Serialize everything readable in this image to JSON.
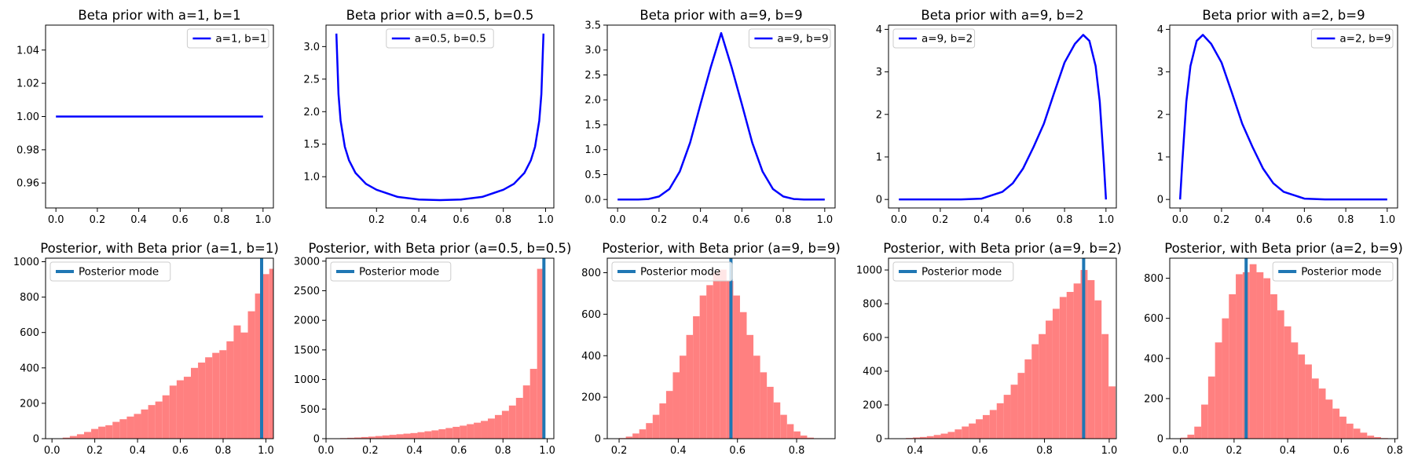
{
  "chart_data": [
    {
      "type": "line",
      "title": "Beta prior with a=1, b=1",
      "color": "#0000ff",
      "legend_position": "upper-right",
      "series": [
        {
          "name": "a=1, b=1",
          "x": [
            0.0,
            1.0
          ],
          "y": [
            1.0,
            1.0
          ]
        }
      ],
      "xlim": [
        -0.05,
        1.05
      ],
      "ylim": [
        0.945,
        1.055
      ],
      "xticks": [
        0.0,
        0.2,
        0.4,
        0.6,
        0.8,
        1.0
      ],
      "xtick_labels": [
        "0.0",
        "0.2",
        "0.4",
        "0.6",
        "0.8",
        "1.0"
      ],
      "yticks": [
        0.96,
        0.98,
        1.0,
        1.02,
        1.04
      ],
      "ytick_labels": [
        "0.96",
        "0.98",
        "1.00",
        "1.02",
        "1.04"
      ]
    },
    {
      "type": "line",
      "title": "Beta prior with a=0.5, b=0.5",
      "color": "#0000ff",
      "legend_position": "upper-center",
      "series": [
        {
          "name": "a=0.5, b=0.5",
          "x": [
            0.01,
            0.02,
            0.03,
            0.05,
            0.07,
            0.1,
            0.15,
            0.2,
            0.3,
            0.4,
            0.5,
            0.6,
            0.7,
            0.8,
            0.85,
            0.9,
            0.93,
            0.95,
            0.97,
            0.98,
            0.99
          ],
          "y": [
            3.2,
            2.27,
            1.86,
            1.46,
            1.25,
            1.06,
            0.89,
            0.8,
            0.69,
            0.65,
            0.64,
            0.65,
            0.69,
            0.8,
            0.89,
            1.06,
            1.25,
            1.46,
            1.86,
            2.27,
            3.2
          ]
        }
      ],
      "xlim": [
        -0.039,
        1.039
      ],
      "ylim": [
        0.52,
        3.33
      ],
      "xticks": [
        0.2,
        0.4,
        0.6,
        0.8,
        1.0
      ],
      "xtick_labels": [
        "0.2",
        "0.4",
        "0.6",
        "0.8",
        "1.0"
      ],
      "yticks": [
        1.0,
        1.5,
        2.0,
        2.5,
        3.0
      ],
      "ytick_labels": [
        "1.0",
        "1.5",
        "2.0",
        "2.5",
        "3.0"
      ]
    },
    {
      "type": "line",
      "title": "Beta prior with a=9, b=9",
      "color": "#0000ff",
      "legend_position": "upper-right",
      "series": [
        {
          "name": "a=9, b=9",
          "x": [
            0.0,
            0.1,
            0.15,
            0.2,
            0.25,
            0.3,
            0.35,
            0.4,
            0.45,
            0.5,
            0.55,
            0.6,
            0.65,
            0.7,
            0.75,
            0.8,
            0.85,
            0.9,
            1.0
          ],
          "y": [
            0.0,
            0.0,
            0.01,
            0.06,
            0.21,
            0.56,
            1.14,
            1.91,
            2.66,
            3.34,
            2.66,
            1.91,
            1.14,
            0.56,
            0.21,
            0.06,
            0.01,
            0.0,
            0.0
          ]
        }
      ],
      "xlim": [
        -0.05,
        1.05
      ],
      "ylim": [
        -0.17,
        3.5
      ],
      "xticks": [
        0.0,
        0.2,
        0.4,
        0.6,
        0.8,
        1.0
      ],
      "xtick_labels": [
        "0.0",
        "0.2",
        "0.4",
        "0.6",
        "0.8",
        "1.0"
      ],
      "yticks": [
        0.0,
        0.5,
        1.0,
        1.5,
        2.0,
        2.5,
        3.0,
        3.5
      ],
      "ytick_labels": [
        "0.0",
        "0.5",
        "1.0",
        "1.5",
        "2.0",
        "2.5",
        "3.0",
        "3.5"
      ]
    },
    {
      "type": "line",
      "title": "Beta prior with a=9, b=2",
      "color": "#0000ff",
      "legend_position": "upper-left",
      "series": [
        {
          "name": "a=9, b=2",
          "x": [
            0.0,
            0.3,
            0.4,
            0.5,
            0.55,
            0.6,
            0.65,
            0.7,
            0.75,
            0.8,
            0.85,
            0.89,
            0.92,
            0.95,
            0.97,
            0.99,
            1.0
          ],
          "y": [
            0.0,
            0.0,
            0.02,
            0.18,
            0.38,
            0.73,
            1.23,
            1.78,
            2.51,
            3.22,
            3.66,
            3.87,
            3.73,
            3.14,
            2.3,
            0.83,
            0.0
          ]
        }
      ],
      "xlim": [
        -0.05,
        1.05
      ],
      "ylim": [
        -0.2,
        4.1
      ],
      "xticks": [
        0.0,
        0.2,
        0.4,
        0.6,
        0.8,
        1.0
      ],
      "xtick_labels": [
        "0.0",
        "0.2",
        "0.4",
        "0.6",
        "0.8",
        "1.0"
      ],
      "yticks": [
        0,
        1,
        2,
        3,
        4
      ],
      "ytick_labels": [
        "0",
        "1",
        "2",
        "3",
        "4"
      ]
    },
    {
      "type": "line",
      "title": "Beta prior with a=2, b=9",
      "color": "#0000ff",
      "legend_position": "upper-right",
      "series": [
        {
          "name": "a=2, b=9",
          "x": [
            0.0,
            0.01,
            0.03,
            0.05,
            0.08,
            0.11,
            0.15,
            0.2,
            0.25,
            0.3,
            0.35,
            0.4,
            0.45,
            0.5,
            0.6,
            0.7,
            1.0
          ],
          "y": [
            0.0,
            0.83,
            2.3,
            3.14,
            3.73,
            3.87,
            3.66,
            3.22,
            2.51,
            1.78,
            1.23,
            0.73,
            0.38,
            0.18,
            0.02,
            0.0,
            0.0
          ]
        }
      ],
      "xlim": [
        -0.05,
        1.05
      ],
      "ylim": [
        -0.2,
        4.1
      ],
      "xticks": [
        0.0,
        0.2,
        0.4,
        0.6,
        0.8,
        1.0
      ],
      "xtick_labels": [
        "0.0",
        "0.2",
        "0.4",
        "0.6",
        "0.8",
        "1.0"
      ],
      "yticks": [
        0,
        1,
        2,
        3,
        4
      ],
      "ytick_labels": [
        "0",
        "1",
        "2",
        "3",
        "4"
      ]
    },
    {
      "type": "bar",
      "title": "Posterior, with Beta prior (a=1, b=1)",
      "color": "#ff8080",
      "mode_color": "#1f77b4",
      "legend_position": "upper-left",
      "mode_label": "Posterior mode",
      "mode": 0.98,
      "bin_start": 0.0167,
      "bin_width": 0.0333,
      "values": [
        2,
        6,
        15,
        25,
        38,
        55,
        68,
        76,
        95,
        110,
        125,
        140,
        165,
        190,
        210,
        245,
        300,
        330,
        350,
        400,
        430,
        460,
        485,
        500,
        550,
        640,
        600,
        720,
        820,
        930,
        960
      ],
      "xlim": [
        -0.03,
        1.035
      ],
      "ylim": [
        0,
        1020
      ],
      "xticks": [
        0.0,
        0.2,
        0.4,
        0.6,
        0.8,
        1.0
      ],
      "xtick_labels": [
        "0.0",
        "0.2",
        "0.4",
        "0.6",
        "0.8",
        "1.0"
      ],
      "yticks": [
        0,
        200,
        400,
        600,
        800,
        1000
      ],
      "ytick_labels": [
        "0",
        "200",
        "400",
        "600",
        "800",
        "1000"
      ]
    },
    {
      "type": "bar",
      "title": "Posterior, with Beta prior (a=0.5, b=0.5)",
      "color": "#ff8080",
      "mode_color": "#1f77b4",
      "legend_position": "upper-left",
      "mode_label": "Posterior mode",
      "mode": 0.985,
      "bin_start": 0.032,
      "bin_width": 0.0318,
      "values": [
        5,
        10,
        15,
        20,
        28,
        35,
        45,
        55,
        65,
        75,
        85,
        95,
        110,
        125,
        140,
        160,
        180,
        200,
        220,
        245,
        270,
        300,
        340,
        400,
        470,
        560,
        690,
        900,
        1180,
        2870
      ],
      "xlim": [
        0.0,
        1.03
      ],
      "ylim": [
        0,
        3050
      ],
      "xticks": [
        0.0,
        0.2,
        0.4,
        0.6,
        0.8,
        1.0
      ],
      "xtick_labels": [
        "0.0",
        "0.2",
        "0.4",
        "0.6",
        "0.8",
        "1.0"
      ],
      "yticks": [
        0,
        500,
        1000,
        1500,
        2000,
        2500,
        3000
      ],
      "ytick_labels": [
        "0",
        "500",
        "1000",
        "1500",
        "2000",
        "2500",
        "3000"
      ]
    },
    {
      "type": "bar",
      "title": "Posterior, with Beta prior (a=9, b=9)",
      "color": "#ff8080",
      "mode_color": "#1f77b4",
      "legend_position": "upper-left",
      "mode_label": "Posterior mode",
      "mode": 0.578,
      "bin_start": 0.2,
      "bin_width": 0.0227,
      "values": [
        3,
        10,
        25,
        45,
        75,
        115,
        170,
        230,
        320,
        400,
        500,
        590,
        690,
        740,
        800,
        815,
        760,
        690,
        610,
        500,
        400,
        320,
        250,
        175,
        115,
        70,
        35,
        15,
        5,
        2
      ],
      "xlim": [
        0.16,
        0.93
      ],
      "ylim": [
        0,
        870
      ],
      "xticks": [
        0.2,
        0.4,
        0.6,
        0.8
      ],
      "xtick_labels": [
        "0.2",
        "0.4",
        "0.6",
        "0.8"
      ],
      "yticks": [
        0,
        200,
        400,
        600,
        800
      ],
      "ytick_labels": [
        "0",
        "200",
        "400",
        "600",
        "800"
      ]
    },
    {
      "type": "bar",
      "title": "Posterior, with Beta prior (a=9, b=2)",
      "color": "#ff8080",
      "mode_color": "#1f77b4",
      "legend_position": "upper-left",
      "mode_label": "Posterior mode",
      "mode": 0.921,
      "bin_start": 0.35,
      "bin_width": 0.0216,
      "values": [
        2,
        4,
        7,
        10,
        15,
        22,
        30,
        40,
        55,
        72,
        90,
        115,
        140,
        170,
        210,
        260,
        320,
        390,
        470,
        560,
        620,
        700,
        770,
        840,
        870,
        920,
        1000,
        940,
        820,
        620,
        310
      ],
      "xlim": [
        0.318,
        1.022
      ],
      "ylim": [
        0,
        1070
      ],
      "xticks": [
        0.4,
        0.6,
        0.8,
        1.0
      ],
      "xtick_labels": [
        "0.4",
        "0.6",
        "0.8",
        "1.0"
      ],
      "yticks": [
        0,
        200,
        400,
        600,
        800,
        1000
      ],
      "ytick_labels": [
        "0",
        "200",
        "400",
        "600",
        "800",
        "1000"
      ]
    },
    {
      "type": "bar",
      "title": "Posterior, with Beta prior (a=2, b=9)",
      "color": "#ff8080",
      "mode_color": "#1f77b4",
      "legend_position": "upper-right",
      "mode_label": "Posterior mode",
      "mode": 0.245,
      "bin_start": 0.0,
      "bin_width": 0.0258,
      "values": [
        5,
        20,
        60,
        170,
        310,
        480,
        600,
        720,
        820,
        830,
        870,
        830,
        800,
        720,
        640,
        560,
        480,
        420,
        370,
        300,
        250,
        195,
        150,
        110,
        75,
        50,
        30,
        15,
        8,
        3
      ],
      "xlim": [
        -0.04,
        0.81
      ],
      "ylim": [
        0,
        900
      ],
      "xticks": [
        0.0,
        0.2,
        0.4,
        0.6,
        0.8
      ],
      "xtick_labels": [
        "0.0",
        "0.2",
        "0.4",
        "0.6",
        "0.8"
      ],
      "yticks": [
        0,
        200,
        400,
        600,
        800
      ],
      "ytick_labels": [
        "0",
        "200",
        "400",
        "600",
        "800"
      ]
    }
  ]
}
